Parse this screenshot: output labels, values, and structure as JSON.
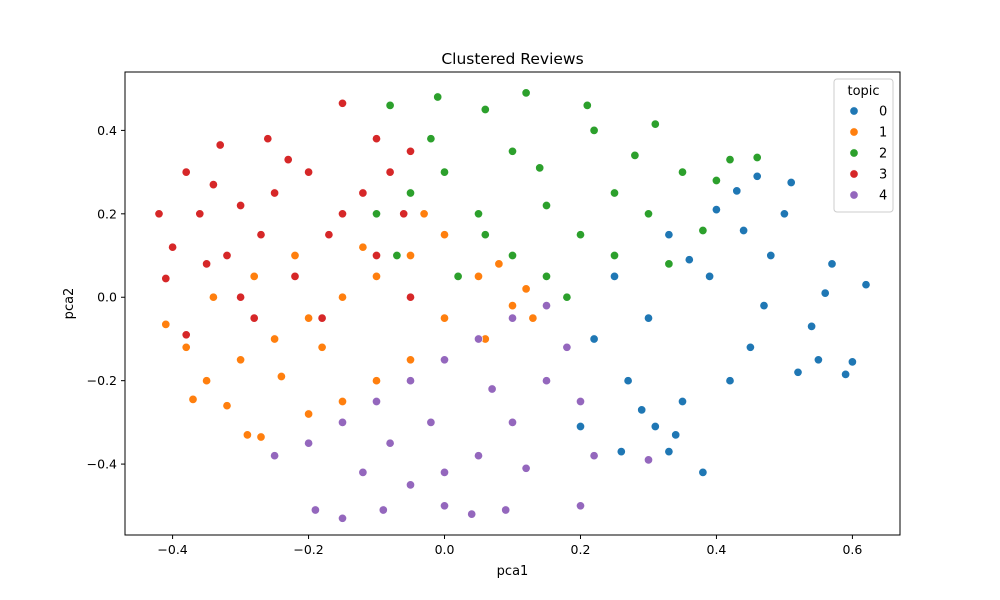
{
  "chart_data": {
    "type": "scatter",
    "title": "Clustered Reviews",
    "xlabel": "pca1",
    "ylabel": "pca2",
    "xlim": [
      -0.47,
      0.67
    ],
    "ylim": [
      -0.57,
      0.54
    ],
    "x_ticks": [
      -0.4,
      -0.2,
      0.0,
      0.2,
      0.4,
      0.6
    ],
    "x_tick_labels": [
      "−0.4",
      "−0.2",
      "0.0",
      "0.2",
      "0.4",
      "0.6"
    ],
    "y_ticks": [
      -0.4,
      -0.2,
      0.0,
      0.2,
      0.4
    ],
    "y_tick_labels": [
      "−0.4",
      "−0.2",
      "0.0",
      "0.2",
      "0.4"
    ],
    "grid": false,
    "legend": {
      "title": "topic",
      "placement": "top-right"
    },
    "series": [
      {
        "name": "0",
        "color": "#1f77b4",
        "points": [
          [
            0.62,
            0.03
          ],
          [
            0.6,
            -0.155
          ],
          [
            0.59,
            -0.185
          ],
          [
            0.51,
            0.275
          ],
          [
            0.46,
            0.29
          ],
          [
            0.43,
            0.255
          ],
          [
            0.55,
            -0.15
          ],
          [
            0.52,
            -0.18
          ],
          [
            0.38,
            -0.42
          ],
          [
            0.33,
            -0.37
          ],
          [
            0.3,
            -0.39
          ],
          [
            0.26,
            -0.37
          ],
          [
            0.2,
            -0.31
          ],
          [
            0.57,
            0.08
          ],
          [
            0.56,
            0.01
          ],
          [
            0.54,
            -0.07
          ],
          [
            0.5,
            0.2
          ],
          [
            0.48,
            0.1
          ],
          [
            0.45,
            -0.12
          ],
          [
            0.42,
            -0.2
          ],
          [
            0.39,
            0.05
          ],
          [
            0.35,
            -0.25
          ],
          [
            0.33,
            0.15
          ],
          [
            0.3,
            -0.05
          ],
          [
            0.27,
            -0.2
          ],
          [
            0.25,
            0.05
          ],
          [
            0.22,
            -0.1
          ],
          [
            0.4,
            0.21
          ],
          [
            0.44,
            0.16
          ],
          [
            0.36,
            0.09
          ],
          [
            0.31,
            -0.31
          ],
          [
            0.34,
            -0.33
          ],
          [
            0.47,
            -0.02
          ],
          [
            0.29,
            -0.27
          ]
        ]
      },
      {
        "name": "1",
        "color": "#ff7f0e",
        "points": [
          [
            -0.41,
            -0.065
          ],
          [
            -0.37,
            -0.245
          ],
          [
            -0.29,
            -0.33
          ],
          [
            -0.27,
            -0.335
          ],
          [
            -0.32,
            -0.26
          ],
          [
            -0.35,
            -0.2
          ],
          [
            -0.3,
            -0.15
          ],
          [
            -0.25,
            -0.1
          ],
          [
            -0.2,
            -0.05
          ],
          [
            -0.15,
            0.0
          ],
          [
            -0.1,
            0.05
          ],
          [
            -0.05,
            0.1
          ],
          [
            0.0,
            0.15
          ],
          [
            0.05,
            0.05
          ],
          [
            0.1,
            -0.02
          ],
          [
            0.06,
            -0.1
          ],
          [
            0.0,
            -0.05
          ],
          [
            -0.05,
            -0.15
          ],
          [
            -0.1,
            -0.2
          ],
          [
            -0.15,
            -0.25
          ],
          [
            -0.2,
            -0.28
          ],
          [
            -0.34,
            0.0
          ],
          [
            -0.28,
            0.05
          ],
          [
            -0.22,
            0.1
          ],
          [
            -0.12,
            0.12
          ],
          [
            -0.03,
            0.2
          ],
          [
            0.08,
            0.08
          ],
          [
            0.12,
            0.02
          ],
          [
            0.13,
            -0.05
          ],
          [
            -0.38,
            -0.12
          ],
          [
            -0.24,
            -0.19
          ],
          [
            -0.18,
            -0.12
          ]
        ]
      },
      {
        "name": "2",
        "color": "#2ca02c",
        "points": [
          [
            0.12,
            0.49
          ],
          [
            -0.01,
            0.48
          ],
          [
            -0.08,
            0.46
          ],
          [
            0.21,
            0.46
          ],
          [
            0.06,
            0.45
          ],
          [
            0.31,
            0.415
          ],
          [
            0.22,
            0.4
          ],
          [
            0.1,
            0.35
          ],
          [
            0.0,
            0.3
          ],
          [
            -0.05,
            0.25
          ],
          [
            -0.1,
            0.2
          ],
          [
            0.05,
            0.2
          ],
          [
            0.15,
            0.22
          ],
          [
            0.25,
            0.25
          ],
          [
            0.35,
            0.3
          ],
          [
            0.42,
            0.33
          ],
          [
            0.46,
            0.335
          ],
          [
            0.4,
            0.28
          ],
          [
            0.3,
            0.2
          ],
          [
            0.2,
            0.15
          ],
          [
            0.1,
            0.1
          ],
          [
            0.02,
            0.05
          ],
          [
            0.15,
            0.05
          ],
          [
            0.25,
            0.1
          ],
          [
            0.33,
            0.08
          ],
          [
            0.38,
            0.16
          ],
          [
            0.18,
            0.0
          ],
          [
            0.06,
            0.15
          ],
          [
            -0.02,
            0.38
          ],
          [
            0.14,
            0.31
          ],
          [
            0.28,
            0.34
          ],
          [
            -0.07,
            0.1
          ]
        ]
      },
      {
        "name": "3",
        "color": "#d62728",
        "points": [
          [
            -0.15,
            0.465
          ],
          [
            -0.42,
            0.2
          ],
          [
            -0.41,
            0.045
          ],
          [
            -0.38,
            -0.09
          ],
          [
            -0.38,
            0.3
          ],
          [
            -0.33,
            0.365
          ],
          [
            -0.26,
            0.38
          ],
          [
            -0.1,
            0.38
          ],
          [
            -0.05,
            0.35
          ],
          [
            -0.36,
            0.2
          ],
          [
            -0.32,
            0.1
          ],
          [
            -0.3,
            0.0
          ],
          [
            -0.27,
            0.15
          ],
          [
            -0.25,
            0.25
          ],
          [
            -0.2,
            0.3
          ],
          [
            -0.15,
            0.2
          ],
          [
            -0.1,
            0.1
          ],
          [
            -0.05,
            0.0
          ],
          [
            -0.22,
            0.05
          ],
          [
            -0.18,
            -0.05
          ],
          [
            -0.12,
            0.25
          ],
          [
            -0.08,
            0.3
          ],
          [
            -0.35,
            0.08
          ],
          [
            -0.28,
            -0.05
          ],
          [
            -0.4,
            0.12
          ],
          [
            -0.34,
            0.27
          ],
          [
            -0.23,
            0.33
          ],
          [
            -0.17,
            0.15
          ],
          [
            -0.06,
            0.2
          ],
          [
            -0.3,
            0.22
          ]
        ]
      },
      {
        "name": "4",
        "color": "#9467bd",
        "points": [
          [
            -0.15,
            -0.53
          ],
          [
            -0.19,
            -0.51
          ],
          [
            -0.09,
            -0.51
          ],
          [
            0.0,
            -0.5
          ],
          [
            0.04,
            -0.52
          ],
          [
            0.09,
            -0.51
          ],
          [
            0.2,
            -0.5
          ],
          [
            -0.25,
            -0.38
          ],
          [
            -0.2,
            -0.35
          ],
          [
            -0.15,
            -0.3
          ],
          [
            -0.1,
            -0.25
          ],
          [
            -0.05,
            -0.2
          ],
          [
            0.0,
            -0.15
          ],
          [
            0.05,
            -0.1
          ],
          [
            0.1,
            -0.05
          ],
          [
            0.15,
            -0.02
          ],
          [
            0.18,
            -0.12
          ],
          [
            0.15,
            -0.2
          ],
          [
            0.1,
            -0.3
          ],
          [
            0.05,
            -0.38
          ],
          [
            0.0,
            -0.42
          ],
          [
            -0.05,
            -0.45
          ],
          [
            -0.12,
            -0.42
          ],
          [
            0.2,
            -0.25
          ],
          [
            0.22,
            -0.38
          ],
          [
            0.3,
            -0.39
          ],
          [
            0.12,
            -0.41
          ],
          [
            -0.08,
            -0.35
          ],
          [
            0.07,
            -0.22
          ],
          [
            -0.02,
            -0.3
          ]
        ]
      }
    ]
  }
}
